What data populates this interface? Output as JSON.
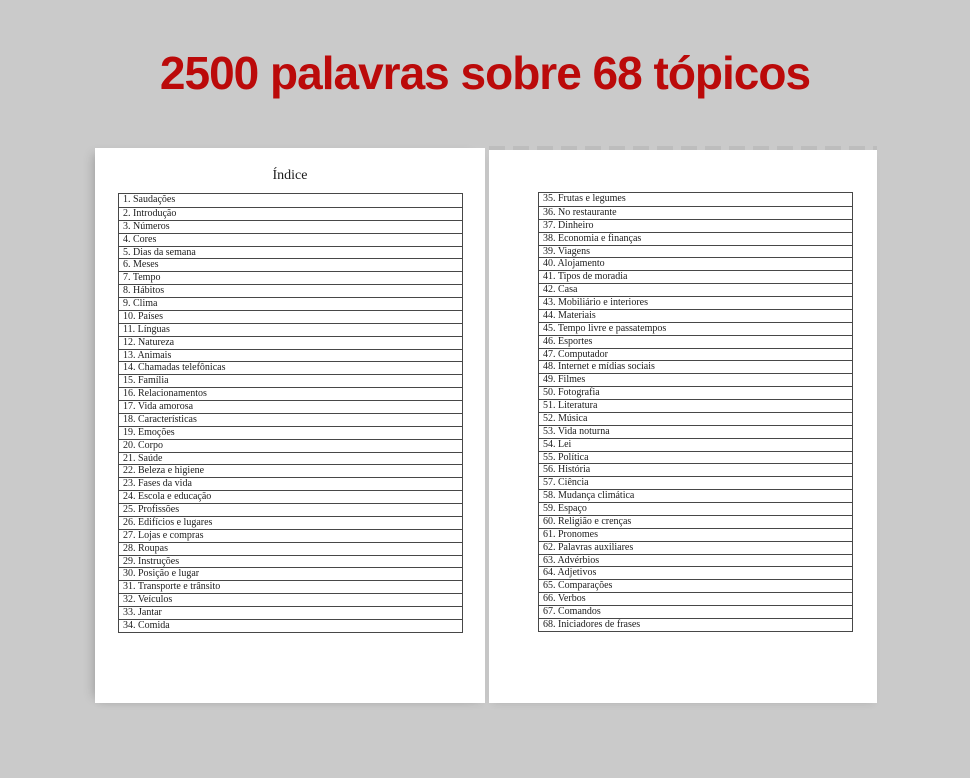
{
  "title": "2500 palavras sobre 68 tópicos",
  "colors": {
    "background": "#cacaca",
    "page_white": "#ffffff",
    "title_red": "#bb0a0a",
    "table_border": "#474747",
    "text_black": "#1c1c1c",
    "scan_dash": "#bdbdbd"
  },
  "pages": {
    "left": {
      "heading": "Índice",
      "items": [
        "1. Saudações",
        "2. Introdução",
        "3. Números",
        "4. Cores",
        "5. Dias da semana",
        "6. Meses",
        "7. Tempo",
        "8. Hábitos",
        "9. Clima",
        "10. Países",
        "11. Línguas",
        "12. Natureza",
        "13. Animais",
        "14. Chamadas telefônicas",
        "15. Família",
        "16. Relacionamentos",
        "17. Vida amorosa",
        "18. Características",
        "19. Emoções",
        "20. Corpo",
        "21. Saúde",
        "22. Beleza e higiene",
        "23. Fases da vida",
        "24. Escola e educação",
        "25. Profissões",
        "26. Edifícios e lugares",
        "27. Lojas e compras",
        "28. Roupas",
        "29. Instruções",
        "30. Posição e lugar",
        "31. Transporte e trânsito",
        "32. Veículos",
        "33. Jantar",
        "34. Comida"
      ]
    },
    "right": {
      "items": [
        "35. Frutas e legumes",
        "36. No restaurante",
        "37. Dinheiro",
        "38. Economia e finanças",
        "39. Viagens",
        "40. Alojamento",
        "41. Tipos de moradia",
        "42. Casa",
        "43. Mobiliário e interiores",
        "44. Materiais",
        "45. Tempo livre e passatempos",
        "46. Esportes",
        "47. Computador",
        "48. Internet e mídias sociais",
        "49. Filmes",
        "50. Fotografia",
        "51. Literatura",
        "52. Música",
        "53. Vida noturna",
        "54. Lei",
        "55. Política",
        "56. História",
        "57. Ciência",
        "58. Mudança climática",
        "59. Espaço",
        "60. Religião e crenças",
        "61. Pronomes",
        "62. Palavras auxiliares",
        "63. Advérbios",
        "64. Adjetivos",
        "65. Comparações",
        "66. Verbos",
        "67. Comandos",
        "68. Iniciadores de frases"
      ]
    }
  }
}
